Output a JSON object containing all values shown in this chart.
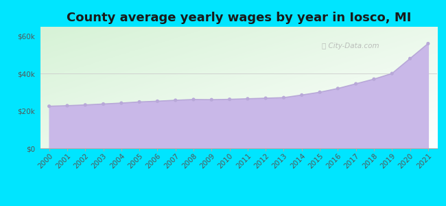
{
  "title": "County average yearly wages by year in Iosco, MI",
  "years": [
    2000,
    2001,
    2002,
    2003,
    2004,
    2005,
    2006,
    2007,
    2008,
    2009,
    2010,
    2011,
    2012,
    2013,
    2014,
    2015,
    2016,
    2017,
    2018,
    2019,
    2020,
    2021
  ],
  "wages": [
    22500,
    22800,
    23200,
    23700,
    24200,
    24800,
    25200,
    25700,
    26100,
    26000,
    26200,
    26500,
    26800,
    27100,
    28500,
    30000,
    32000,
    34500,
    37000,
    40000,
    48000,
    56000
  ],
  "fill_color": "#c9b8e8",
  "line_color": "#b8a8d8",
  "dot_color": "#b8a8d8",
  "background_outer": "#00e5ff",
  "yticks": [
    0,
    20000,
    40000,
    60000
  ],
  "ytick_labels": [
    "$0",
    "$20k",
    "$40k",
    "$60k"
  ],
  "ylim": [
    0,
    65000
  ],
  "title_fontsize": 13,
  "tick_fontsize": 7.5,
  "watermark": "City-Data.com",
  "bg_color_topleft": "#d8f0d0",
  "bg_color_topright": "#f0f8f0",
  "bg_color_bottomleft": "#e8f8e8",
  "bg_color_bottomright": "#ffffff"
}
